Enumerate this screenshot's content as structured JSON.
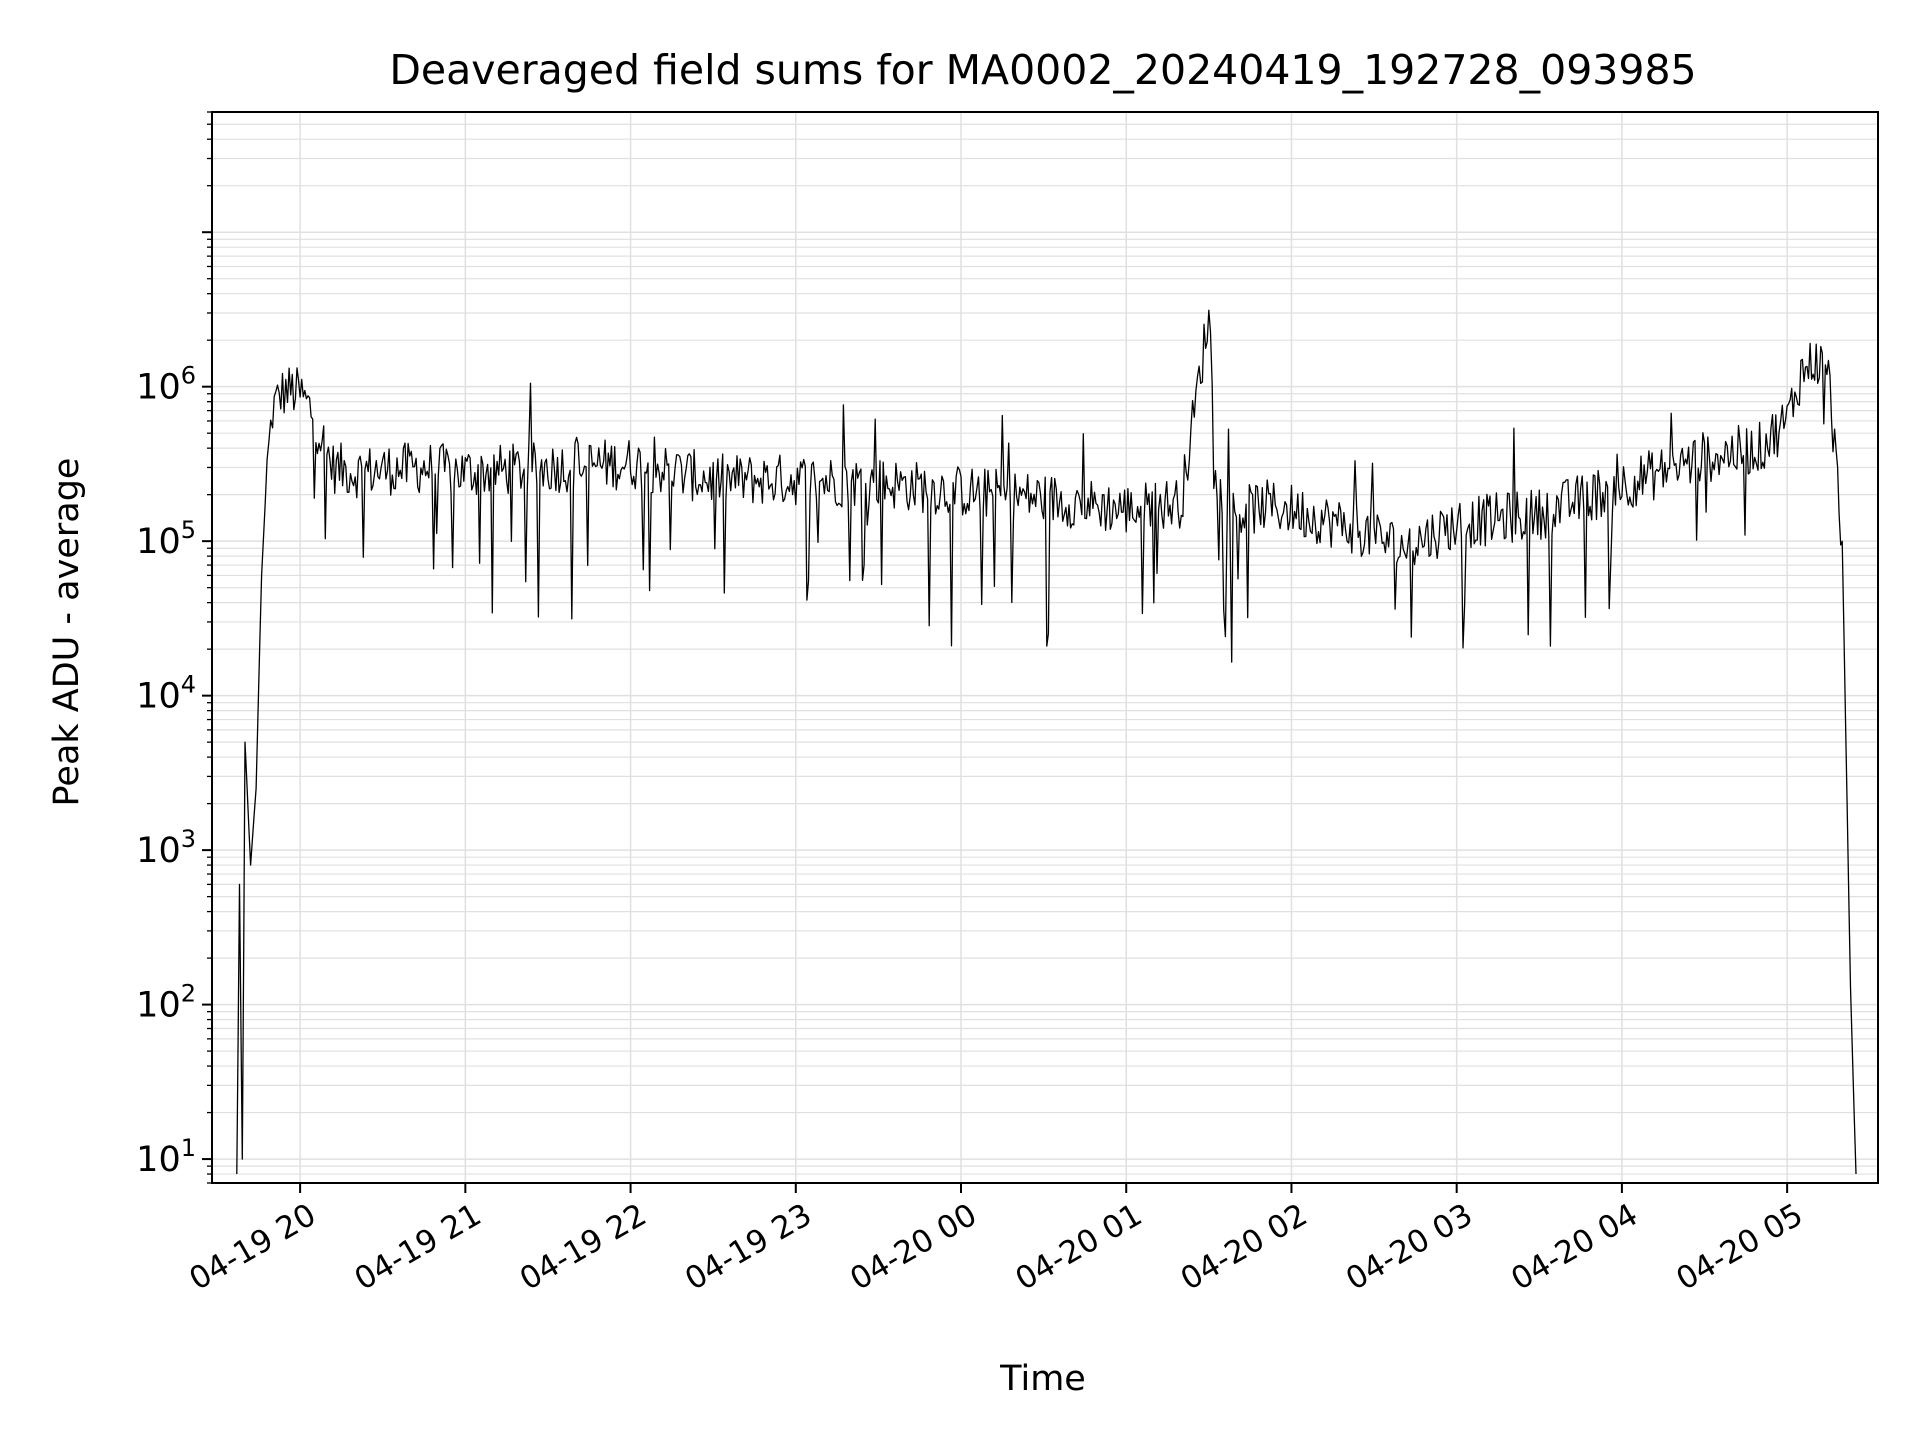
{
  "chart_data": {
    "type": "line",
    "title": "Deaveraged field sums for MA0002_20240419_192728_093985",
    "xlabel": "Time",
    "ylabel": "Peak ADU - average",
    "yscale": "log",
    "xlim": [
      "2024-04-19 19:28",
      "2024-04-20 05:33"
    ],
    "ylim": [
      7,
      60000000
    ],
    "grid": true,
    "grid_color": "#e0e0e0",
    "line_color": "#000000",
    "x_tick_labels": [
      "04-19 20",
      "04-19 21",
      "04-19 22",
      "04-19 23",
      "04-20 00",
      "04-20 01",
      "04-20 02",
      "04-20 03",
      "04-20 04",
      "04-20 05"
    ],
    "y_tick_exponents": [
      "1",
      "2",
      "3",
      "4",
      "5",
      "6"
    ],
    "series": [
      {
        "x": [
          "2024-04-19 19:37",
          "2024-04-19 19:38",
          "2024-04-19 19:39",
          "2024-04-19 19:40",
          "2024-04-19 19:42",
          "2024-04-19 19:44",
          "2024-04-19 19:46",
          "2024-04-19 19:48",
          "2024-04-19 19:50",
          "2024-04-19 19:53",
          "2024-04-19 19:56",
          "2024-04-19 20:00",
          "2024-04-19 20:04",
          "2024-04-19 20:08",
          "2024-04-19 20:12",
          "2024-04-19 20:20",
          "2024-04-19 20:30",
          "2024-04-19 20:45",
          "2024-04-19 21:00",
          "2024-04-19 21:30",
          "2024-04-19 22:00",
          "2024-04-19 22:30",
          "2024-04-19 23:00",
          "2024-04-19 23:30",
          "2024-04-20 00:00",
          "2024-04-20 00:30",
          "2024-04-20 01:00",
          "2024-04-20 01:20",
          "2024-04-20 01:30",
          "2024-04-20 01:33",
          "2024-04-20 01:36",
          "2024-04-20 01:40",
          "2024-04-20 01:50",
          "2024-04-20 02:00",
          "2024-04-20 02:30",
          "2024-04-20 02:40",
          "2024-04-20 03:00",
          "2024-04-20 03:30",
          "2024-04-20 04:00",
          "2024-04-20 04:30",
          "2024-04-20 04:50",
          "2024-04-20 05:00",
          "2024-04-20 05:05",
          "2024-04-20 05:10",
          "2024-04-20 05:15",
          "2024-04-20 05:20",
          "2024-04-20 05:23",
          "2024-04-20 05:25"
        ],
        "y": [
          8,
          600,
          10,
          5000,
          800,
          2500,
          60000,
          300000,
          700000,
          900000,
          950000,
          900000,
          700000,
          450000,
          300000,
          280000,
          290000,
          300000,
          280000,
          300000,
          320000,
          250000,
          250000,
          240000,
          210000,
          190000,
          160000,
          180000,
          3000000,
          250000,
          160000,
          150000,
          170000,
          160000,
          110000,
          90000,
          130000,
          150000,
          230000,
          350000,
          400000,
          600000,
          1200000,
          1500000,
          1200000,
          100000,
          130,
          8
        ]
      }
    ]
  }
}
